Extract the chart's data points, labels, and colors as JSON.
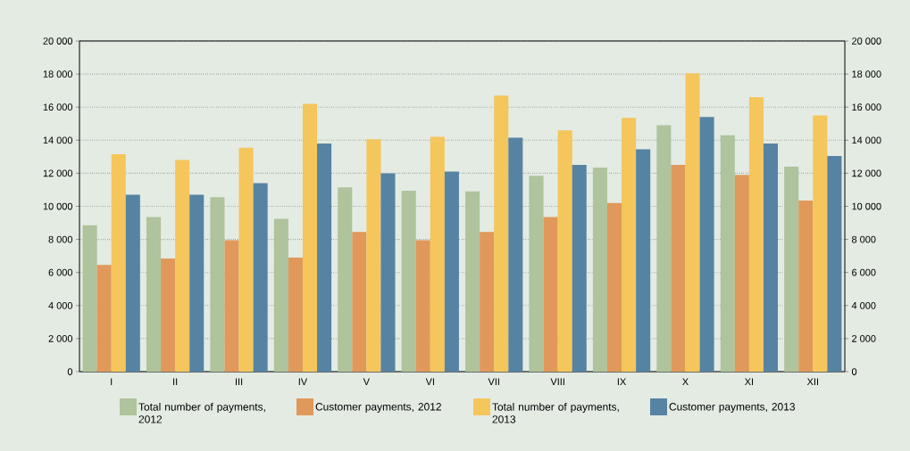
{
  "chart_data": {
    "type": "bar",
    "categories": [
      "I",
      "II",
      "III",
      "IV",
      "V",
      "VI",
      "VII",
      "VIII",
      "IX",
      "X",
      "XI",
      "XII"
    ],
    "series": [
      {
        "name": "Total number of payments, 2012",
        "color": "#afc39c",
        "values": [
          8850,
          9350,
          10550,
          9250,
          11150,
          10950,
          10900,
          11850,
          12350,
          14900,
          14300,
          12400
        ]
      },
      {
        "name": "Customer payments, 2012",
        "color": "#e0995a",
        "values": [
          6450,
          6850,
          7950,
          6900,
          8450,
          7950,
          8450,
          9350,
          10200,
          12500,
          11900,
          10350
        ]
      },
      {
        "name": "Total number of payments, 2013",
        "color": "#f5c65b",
        "values": [
          13150,
          12800,
          13550,
          16200,
          14050,
          14200,
          16700,
          14600,
          15350,
          18050,
          16600,
          15500
        ]
      },
      {
        "name": "Customer payments, 2013",
        "color": "#5783a3",
        "values": [
          10700,
          10700,
          11400,
          13800,
          12000,
          12100,
          14150,
          12500,
          13450,
          15400,
          13800,
          13050
        ]
      }
    ],
    "ylim": [
      0,
      20000
    ],
    "yticks": [
      0,
      {
        "value": 2000,
        "label": "2 000"
      },
      {
        "value": 4000,
        "label": "4 000"
      },
      {
        "value": 6000,
        "label": "6 000"
      },
      {
        "value": 8000,
        "label": "8 000"
      },
      {
        "value": 10000,
        "label": "10 000"
      },
      {
        "value": 12000,
        "label": "12 000"
      },
      {
        "value": 14000,
        "label": "14 000"
      },
      {
        "value": 16000,
        "label": "16 000"
      },
      {
        "value": 18000,
        "label": "18 000"
      },
      {
        "value": 20000,
        "label": "20 000"
      }
    ],
    "y2lim": [
      0,
      20000
    ],
    "y2ticks": [
      0,
      {
        "value": 2000,
        "label": "2 000"
      },
      {
        "value": 4000,
        "label": "4 000"
      },
      {
        "value": 6000,
        "label": "6 000"
      },
      {
        "value": 8000,
        "label": "8 000"
      },
      {
        "value": 10000,
        "label": "10 000"
      },
      {
        "value": 12000,
        "label": "12 000"
      },
      {
        "value": 14000,
        "label": "14 000"
      },
      {
        "value": 16000,
        "label": "16 000"
      },
      {
        "value": 18000,
        "label": "18 000"
      },
      {
        "value": 20000,
        "label": "20 000"
      }
    ],
    "grid": "y",
    "legend": "bottom"
  }
}
